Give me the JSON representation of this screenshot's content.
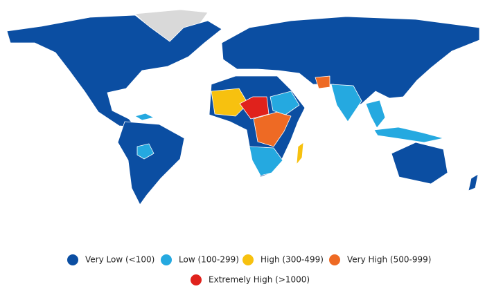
{
  "legend": {
    "items": [
      {
        "label": "Very Low (<100)",
        "color": "#0b4ea2"
      },
      {
        "label": "Low (100-299)",
        "color": "#25a9e0"
      },
      {
        "label": "High (300-499)",
        "color": "#f7c10f"
      },
      {
        "label": "Very High (500-999)",
        "color": "#ee6a24"
      },
      {
        "label": "Extremely High (>1000)",
        "color": "#e0221c"
      }
    ]
  }
}
